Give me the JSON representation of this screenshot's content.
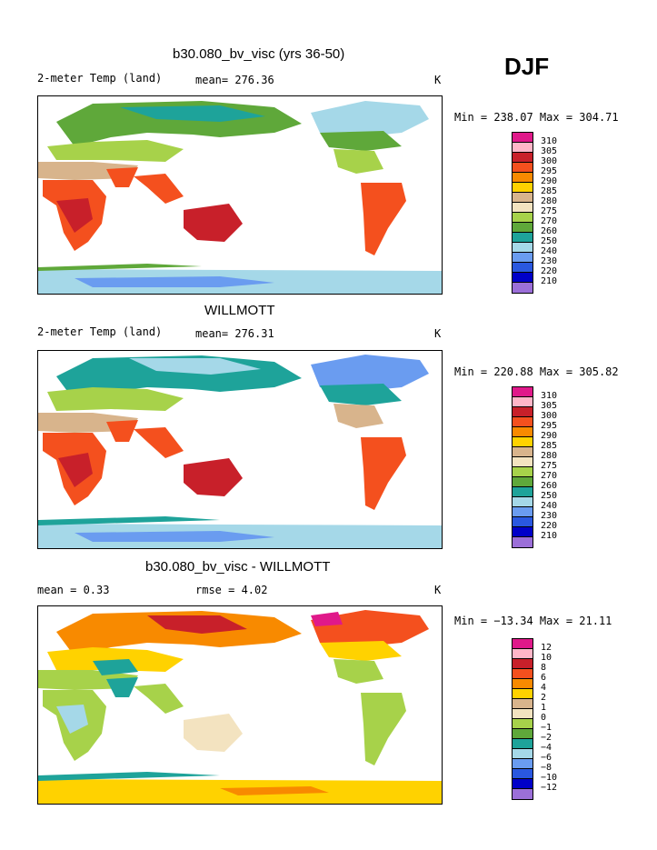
{
  "season": "DJF",
  "palette_abs": [
    "#e0198a",
    "#ffb6c8",
    "#c8202a",
    "#f4501e",
    "#f88a00",
    "#ffd200",
    "#d8b48c",
    "#f3e3c0",
    "#a7d24a",
    "#5fa83a",
    "#1ea39a",
    "#a5d8e8",
    "#6a9cf0",
    "#2a58e0",
    "#0000c8",
    "#9b6fd8"
  ],
  "panels": [
    {
      "title": "b30.080_bv_visc (yrs 36-50)",
      "left_label": "2-meter Temp (land)",
      "center_label": "mean= 276.36",
      "units": "K",
      "minmax": "Min = 238.07 Max = 304.71",
      "colorbar_labels": [
        "310",
        "305",
        "300",
        "295",
        "290",
        "285",
        "280",
        "275",
        "270",
        "260",
        "250",
        "240",
        "230",
        "220",
        "210"
      ],
      "palette": [
        "#e0198a",
        "#ffb6c8",
        "#c8202a",
        "#f4501e",
        "#f88a00",
        "#ffd200",
        "#d8b48c",
        "#f3e3c0",
        "#a7d24a",
        "#5fa83a",
        "#1ea39a",
        "#a5d8e8",
        "#6a9cf0",
        "#2a58e0",
        "#0000c8",
        "#9b6fd8"
      ]
    },
    {
      "title": "WILLMOTT",
      "left_label": "2-meter Temp (land)",
      "center_label": "mean= 276.31",
      "units": "K",
      "minmax": "Min = 220.88 Max = 305.82",
      "colorbar_labels": [
        "310",
        "305",
        "300",
        "295",
        "290",
        "285",
        "280",
        "275",
        "270",
        "260",
        "250",
        "240",
        "230",
        "220",
        "210"
      ],
      "palette": [
        "#e0198a",
        "#ffb6c8",
        "#c8202a",
        "#f4501e",
        "#f88a00",
        "#ffd200",
        "#d8b48c",
        "#f3e3c0",
        "#a7d24a",
        "#5fa83a",
        "#1ea39a",
        "#a5d8e8",
        "#6a9cf0",
        "#2a58e0",
        "#0000c8",
        "#9b6fd8"
      ]
    },
    {
      "title": "b30.080_bv_visc - WILLMOTT",
      "left_label": "mean =     0.33",
      "center_label": "rmse =    4.02",
      "units": "K",
      "minmax": "Min = −13.34 Max =  21.11",
      "colorbar_labels": [
        "12",
        "10",
        "8",
        "6",
        "4",
        "2",
        "1",
        "0",
        "−1",
        "−2",
        "−4",
        "−6",
        "−8",
        "−10",
        "−12"
      ],
      "palette": [
        "#e0198a",
        "#ffb6c8",
        "#c8202a",
        "#f4501e",
        "#f88a00",
        "#ffd200",
        "#d8b48c",
        "#f3e3c0",
        "#a7d24a",
        "#5fa83a",
        "#1ea39a",
        "#a5d8e8",
        "#6a9cf0",
        "#2a58e0",
        "#0000c8",
        "#9b6fd8"
      ]
    }
  ],
  "chart_data": [
    {
      "type": "heatmap",
      "title": "b30.080_bv_visc (yrs 36-50)",
      "variable": "2-meter Temp (land)",
      "season": "DJF",
      "units": "K",
      "mean": 276.36,
      "min": 238.07,
      "max": 304.71,
      "contour_levels": [
        210,
        220,
        230,
        240,
        250,
        260,
        270,
        275,
        280,
        285,
        290,
        295,
        300,
        305,
        310
      ]
    },
    {
      "type": "heatmap",
      "title": "WILLMOTT",
      "variable": "2-meter Temp (land)",
      "season": "DJF",
      "units": "K",
      "mean": 276.31,
      "min": 220.88,
      "max": 305.82,
      "contour_levels": [
        210,
        220,
        230,
        240,
        250,
        260,
        270,
        275,
        280,
        285,
        290,
        295,
        300,
        305,
        310
      ]
    },
    {
      "type": "heatmap",
      "title": "b30.080_bv_visc - WILLMOTT",
      "season": "DJF",
      "units": "K",
      "mean": 0.33,
      "rmse": 4.02,
      "min": -13.34,
      "max": 21.11,
      "contour_levels": [
        -12,
        -10,
        -8,
        -6,
        -4,
        -2,
        -1,
        0,
        1,
        2,
        4,
        6,
        8,
        10,
        12
      ]
    }
  ]
}
